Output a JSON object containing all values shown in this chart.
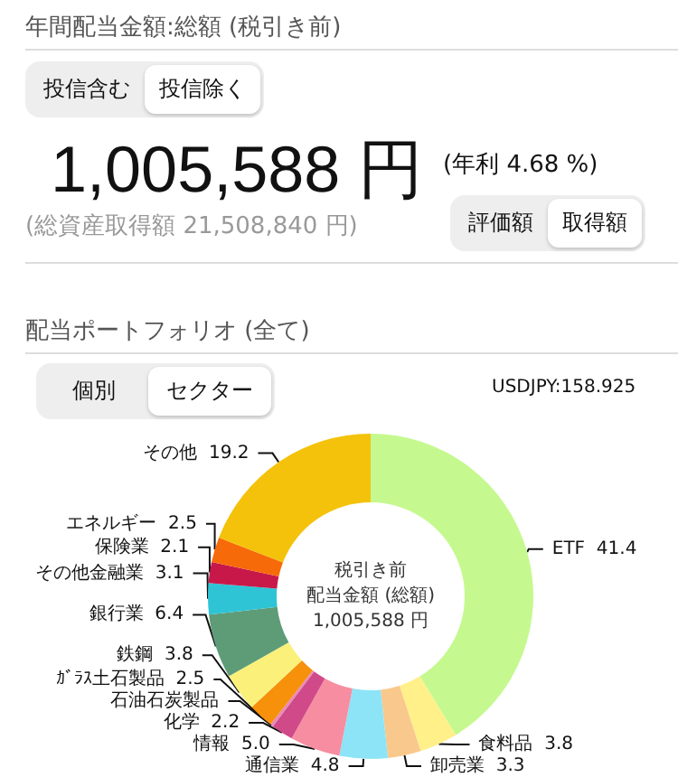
{
  "chart_data": {
    "type": "donut",
    "title": "配当ポートフォリオ (全て)",
    "categories": [
      "ETF",
      "食料品",
      "卸売業",
      "通信業",
      "情報",
      "化学",
      "石油石炭製品",
      "ｶﾞﾗｽ土石製品",
      "鉄鋼",
      "銀行業",
      "その他金融業",
      "保険業",
      "エネルギー",
      "その他"
    ],
    "values": [
      41.4,
      3.8,
      3.3,
      4.8,
      5.0,
      2.2,
      0.3,
      2.5,
      3.8,
      6.4,
      3.1,
      2.1,
      2.5,
      19.2
    ],
    "value_labels": [
      "41.4",
      "3.8",
      "3.3",
      "4.8",
      "5.0",
      "2.2",
      null,
      "2.5",
      "3.8",
      "6.4",
      "3.1",
      "2.1",
      "2.5",
      "19.2"
    ],
    "colors": [
      "#c5f98f",
      "#fff08a",
      "#f9c88c",
      "#8de4f7",
      "#f78da0",
      "#d04a8a",
      "#e88ab8",
      "#f7900a",
      "#fbf07a",
      "#5e9c78",
      "#2ec4d6",
      "#c8184a",
      "#f76a0a",
      "#f4c20a"
    ],
    "annotations": [
      "年間配当金額:総額 (税引き前)",
      "投信含む",
      "投信除く",
      "1,005,588 円",
      "(年利 4.68 %)",
      "(総資産取得額 21,508,840 円)",
      "評価額",
      "取得額",
      "個別",
      "セクター",
      "USDJPY:158.925",
      "税引き前",
      "配当金額 (総額)",
      "1,005,588 円"
    ]
  }
}
